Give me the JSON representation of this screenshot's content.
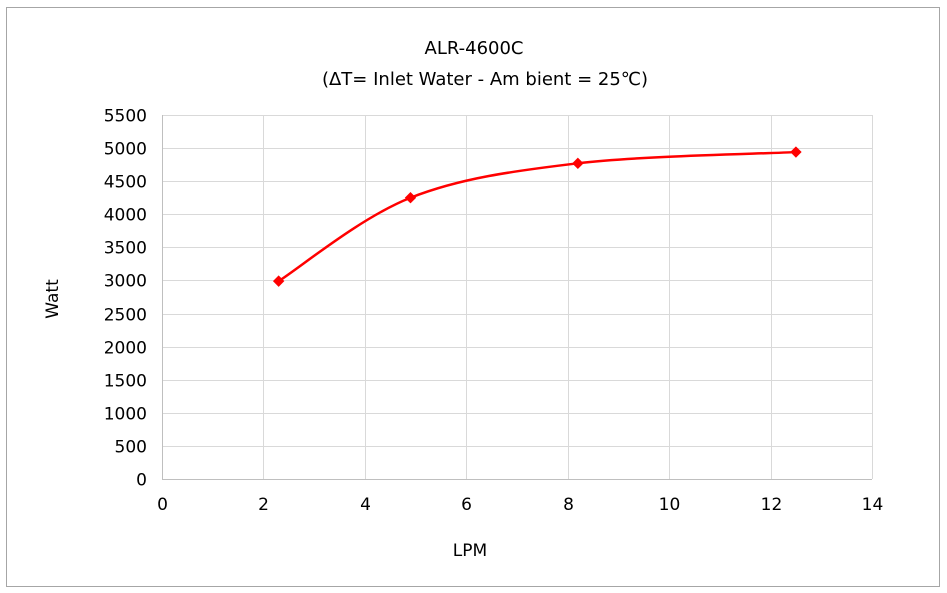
{
  "chart_data": {
    "type": "scatter",
    "title": "ALR-4600C",
    "subtitle": "(ΔT= Inlet Water - Am bient = 25℃)",
    "xlabel": "LPM",
    "ylabel": "Watt",
    "xlim": [
      0,
      14
    ],
    "ylim": [
      0,
      5500
    ],
    "x_ticks": [
      "0",
      "2",
      "4",
      "6",
      "8",
      "10",
      "12",
      "14"
    ],
    "y_ticks": [
      "0",
      "500",
      "1000",
      "1500",
      "2000",
      "2500",
      "3000",
      "3500",
      "4000",
      "4500",
      "5000",
      "5500"
    ],
    "grid": true,
    "legend": "none",
    "series": [
      {
        "color": "#ff0000",
        "marker": "diamond",
        "smooth": true,
        "points": [
          {
            "x": 2.3,
            "y": 2990
          },
          {
            "x": 4.9,
            "y": 4250
          },
          {
            "x": 8.2,
            "y": 4770
          },
          {
            "x": 12.5,
            "y": 4940
          }
        ]
      }
    ]
  }
}
